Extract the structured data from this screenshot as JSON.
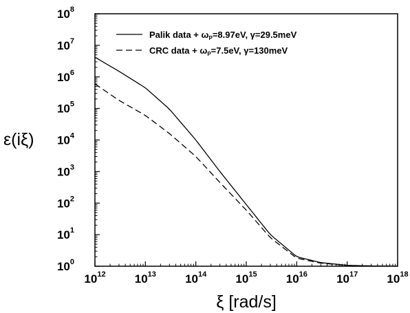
{
  "chart_data": {
    "type": "line",
    "x_scale": "log",
    "y_scale": "log",
    "xlim": [
      1000000000000.0,
      1e+18
    ],
    "ylim": [
      1,
      100000000.0
    ],
    "xlabel": "ξ [rad/s]",
    "ylabel": "ε(iξ)",
    "x_ticks": [
      {
        "base": "10",
        "exp": "12"
      },
      {
        "base": "10",
        "exp": "13"
      },
      {
        "base": "10",
        "exp": "14"
      },
      {
        "base": "10",
        "exp": "15"
      },
      {
        "base": "10",
        "exp": "16"
      },
      {
        "base": "10",
        "exp": "17"
      },
      {
        "base": "10",
        "exp": "18"
      }
    ],
    "y_ticks": [
      {
        "base": "10",
        "exp": "0"
      },
      {
        "base": "10",
        "exp": "1"
      },
      {
        "base": "10",
        "exp": "2"
      },
      {
        "base": "10",
        "exp": "3"
      },
      {
        "base": "10",
        "exp": "4"
      },
      {
        "base": "10",
        "exp": "5"
      },
      {
        "base": "10",
        "exp": "6"
      },
      {
        "base": "10",
        "exp": "7"
      },
      {
        "base": "10",
        "exp": "8"
      }
    ],
    "legend_position": "top-right",
    "grid": false,
    "series": [
      {
        "name": "Palik data + ωP=8.97eV, γ=29.5meV",
        "legend_parts": {
          "pre": "Palik data + ω",
          "sub": "P",
          "post": "=8.97eV, γ=29.5meV"
        },
        "style": "solid",
        "color": "#000000",
        "x": [
          1000000000000.0,
          3000000000000.0,
          10000000000000.0,
          30000000000000.0,
          100000000000000.0,
          300000000000000.0,
          1000000000000000.0,
          3000000000000000.0,
          1e+16,
          3e+16,
          1e+17,
          3e+17,
          1e+18
        ],
        "y": [
          4200000,
          1500000,
          450000,
          95000,
          10000,
          1000,
          90,
          10,
          2.0,
          1.3,
          1.07,
          1.02,
          1.005
        ]
      },
      {
        "name": "CRC data + ωP=7.5eV, γ=130meV",
        "legend_parts": {
          "pre": "CRC data + ω",
          "sub": "P",
          "post": "=7.5eV, γ=130meV"
        },
        "style": "dashed",
        "color": "#000000",
        "x": [
          1000000000000.0,
          3000000000000.0,
          10000000000000.0,
          30000000000000.0,
          100000000000000.0,
          300000000000000.0,
          1000000000000000.0,
          3000000000000000.0,
          1e+16,
          3e+16,
          1e+17,
          3e+17,
          1e+18
        ],
        "y": [
          600000,
          180000,
          60000,
          16000,
          3000,
          450,
          60,
          8,
          1.8,
          1.25,
          1.06,
          1.02,
          1.005
        ]
      }
    ]
  }
}
